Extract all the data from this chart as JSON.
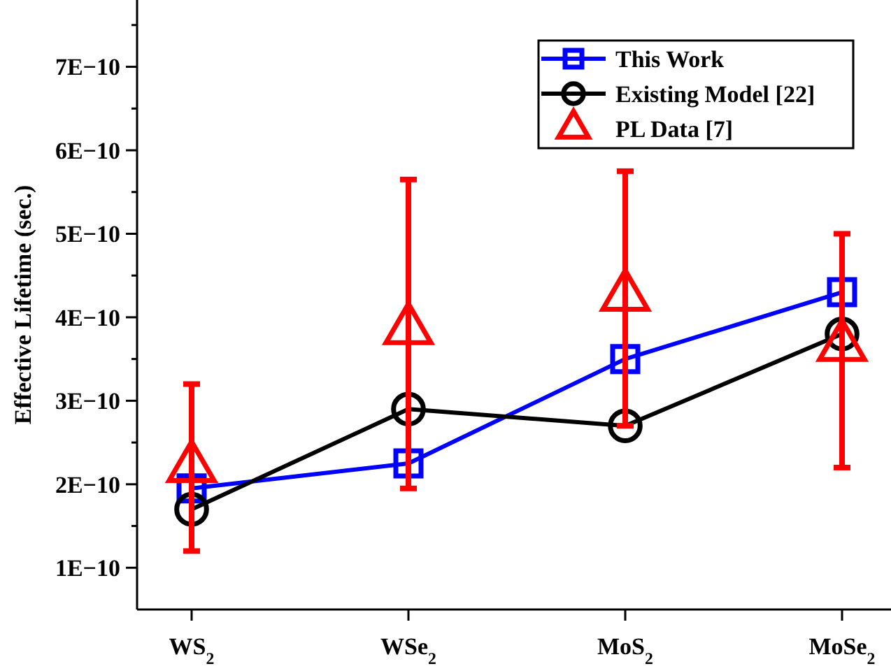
{
  "chart_data": {
    "type": "line",
    "ylabel": "Effective Lifetime (sec.)",
    "categories": [
      "WS$_{2}$",
      "WSe$_{2}$",
      "MoS$_{2}$",
      "MoSe$_{2}$"
    ],
    "ylim": [
      5e-11,
      7.8e-10
    ],
    "yticks": [
      {
        "value": 1e-10,
        "label": "1E−10"
      },
      {
        "value": 1.5e-10,
        "label": null
      },
      {
        "value": 2e-10,
        "label": "2E−10"
      },
      {
        "value": 2.5e-10,
        "label": null
      },
      {
        "value": 3e-10,
        "label": "3E−10"
      },
      {
        "value": 3.5e-10,
        "label": null
      },
      {
        "value": 4e-10,
        "label": "4E−10"
      },
      {
        "value": 4.5e-10,
        "label": null
      },
      {
        "value": 5e-10,
        "label": "5E−10"
      },
      {
        "value": 5.5e-10,
        "label": null
      },
      {
        "value": 6e-10,
        "label": "6E−10"
      },
      {
        "value": 6.5e-10,
        "label": null
      },
      {
        "value": 7e-10,
        "label": "7E−10"
      },
      {
        "value": 7.5e-10,
        "label": null
      }
    ],
    "grid": false,
    "legend": "top right",
    "line_style": "solid",
    "series": [
      {
        "name": "This Work",
        "color": "#0000ff",
        "marker": "square",
        "values": [
          1.95e-10,
          2.25e-10,
          3.5e-10,
          4.3e-10
        ]
      },
      {
        "name": "Existing Model [22]",
        "color": "#000000",
        "marker": "circle",
        "values": [
          1.7e-10,
          2.9e-10,
          2.7e-10,
          3.8e-10
        ]
      },
      {
        "name": "PL Data [7]",
        "type": "scatter",
        "color": "#ff0000",
        "marker": "triangle",
        "values": [
          2.2e-10,
          3.85e-10,
          4.25e-10,
          3.65e-10
        ],
        "errors": [
          [
            1.2e-10,
            3.2e-10
          ],
          [
            1.95e-10,
            5.65e-10
          ],
          [
            2.7e-10,
            5.75e-10
          ],
          [
            2.2e-10,
            5e-10
          ]
        ]
      }
    ]
  }
}
